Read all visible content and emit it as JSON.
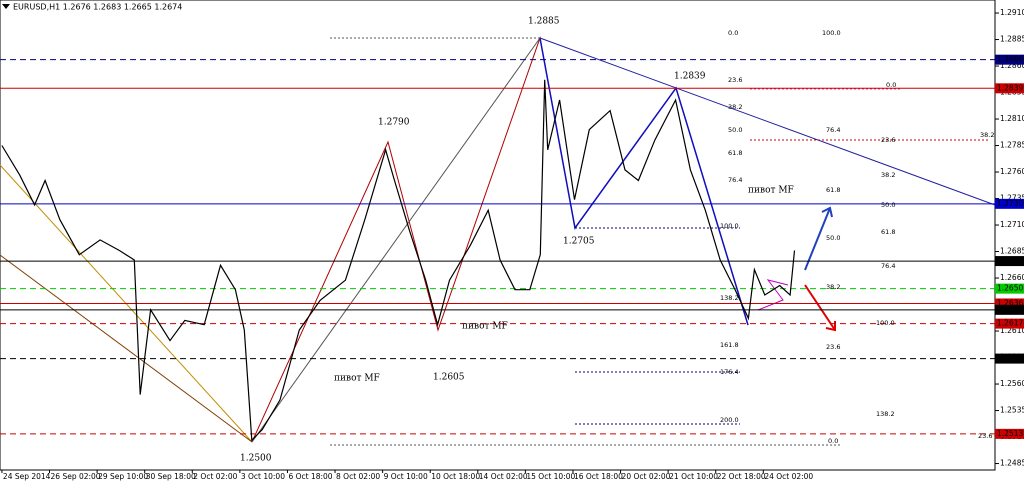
{
  "chart_data": {
    "type": "line",
    "symbol_info": "EURUSD,H1  1.2676 1.2683 1.2665 1.2674",
    "x": [
      0,
      12,
      22,
      29,
      39,
      52,
      66,
      79,
      89,
      93,
      100,
      113,
      123,
      136,
      147,
      157,
      163,
      168,
      175,
      187,
      200,
      214,
      231,
      244,
      258,
      264,
      274,
      285,
      293,
      301,
      315,
      327,
      335,
      345,
      355,
      362,
      365,
      367,
      375,
      385,
      395,
      409,
      419,
      428,
      439,
      453,
      463,
      473,
      483,
      493,
      502,
      506,
      513,
      523,
      530,
      533
    ],
    "series": [
      {
        "color": "#000000",
        "values": [
          1.2785,
          1.2757,
          1.2729,
          1.2752,
          1.2715,
          1.2682,
          1.2696,
          1.2686,
          1.2677,
          1.255,
          1.263,
          1.2601,
          1.262,
          1.2616,
          1.2672,
          1.2649,
          1.2611,
          1.2507,
          1.2517,
          1.2545,
          1.2611,
          1.2639,
          1.2658,
          1.2715,
          1.2781,
          1.2752,
          1.2705,
          1.2658,
          1.2616,
          1.2658,
          1.2691,
          1.2724,
          1.2677,
          1.2649,
          1.2649,
          1.2682,
          1.2847,
          1.2781,
          1.2828,
          1.2734,
          1.28,
          1.2818,
          1.2762,
          1.2752,
          1.279,
          1.2828,
          1.2762,
          1.2724,
          1.2677,
          1.2649,
          1.2622,
          1.2668,
          1.2644,
          1.2653,
          1.2644,
          1.2686
        ]
      }
    ],
    "xlim": [
      -1.3,
      667.8
    ],
    "xticks": [
      {
        "value": 0,
        "label": "24 Sep 2014"
      },
      {
        "value": 32,
        "label": "26 Sep 02:00"
      },
      {
        "value": 64,
        "label": "29 Sep 10:00"
      },
      {
        "value": 96,
        "label": "30 Sep 18:00"
      },
      {
        "value": 128,
        "label": "2 Oct 02:00"
      },
      {
        "value": 160,
        "label": "3 Oct 10:00"
      },
      {
        "value": 192,
        "label": "6 Oct 18:00"
      },
      {
        "value": 224,
        "label": "8 Oct 02:00"
      },
      {
        "value": 256,
        "label": "9 Oct 10:00"
      },
      {
        "value": 288,
        "label": "10 Oct 18:00"
      },
      {
        "value": 320,
        "label": "14 Oct 02:00"
      },
      {
        "value": 352,
        "label": "15 Oct 10:00"
      },
      {
        "value": 384,
        "label": "16 Oct 18:00"
      },
      {
        "value": 416,
        "label": "20 Oct 02:00"
      },
      {
        "value": 448,
        "label": "21 Oct 10:00"
      },
      {
        "value": 480,
        "label": "22 Oct 18:00"
      },
      {
        "value": 512,
        "label": "24 Oct 02:00"
      }
    ],
    "ylim": [
      1.24789,
      1.29223
    ],
    "yticks": [
      {
        "value": 1.291,
        "label": "1.2910"
      },
      1.2885,
      {
        "value": 1.286,
        "label": "1.2860"
      },
      1.2835,
      {
        "value": 1.281,
        "label": "1.2810"
      },
      1.2785,
      {
        "value": 1.276,
        "label": "1.2760"
      },
      1.2735,
      {
        "value": 1.271,
        "label": "1.2710"
      },
      1.2685,
      {
        "value": 1.266,
        "label": "1.2660"
      },
      1.2635,
      {
        "value": 1.261,
        "label": "1.2610"
      },
      1.2585,
      {
        "value": 1.256,
        "label": "1.2560"
      },
      1.2535,
      {
        "value": 1.251,
        "label": "1.2510"
      },
      1.2485
    ],
    "levels": [
      {
        "value": 1.2866,
        "color": "#000080",
        "dash": true
      },
      {
        "value": 1.2839,
        "color": "#cc0000",
        "dash": false
      },
      {
        "value": 1.273,
        "label": "1.2730",
        "color": "#0000cc",
        "dash": false
      },
      {
        "value": 1.2676,
        "color": "#000000",
        "dash": false
      },
      {
        "value": 1.265,
        "label": "1.2650",
        "color": "#00cc00",
        "dash": true
      },
      {
        "value": 1.2636,
        "color": "#cc0000",
        "dash": false
      },
      {
        "value": 1.263,
        "label": "1.2630",
        "color": "#000000",
        "dash": false
      },
      {
        "value": 1.2617,
        "color": "#cc0000",
        "dash": true
      },
      {
        "value": 1.2584,
        "color": "#000000",
        "dash": true
      },
      {
        "value": 1.2513,
        "color": "#cc0000",
        "dash": true
      }
    ],
    "annotations": [
      "1.2885",
      "1.2839",
      "1.2790",
      "1.2705",
      "1.2605",
      "1.2500",
      "пивот MF",
      "пивот MF",
      "пивот MF"
    ],
    "fib_labels": [
      "0.0",
      "100.0",
      "23.6",
      "0.0",
      "38.2",
      "76.4",
      "23.6",
      "38.2",
      "50.0",
      "61.8",
      "38.2",
      "76.4",
      "61.8",
      "50.0",
      "100.0",
      "61.8",
      "50.0",
      "76.4",
      "38.2",
      "138.2",
      "100.0",
      "161.8",
      "23.6",
      "176.4",
      "138.2",
      "200.0",
      "23.6",
      "0.0"
    ]
  }
}
